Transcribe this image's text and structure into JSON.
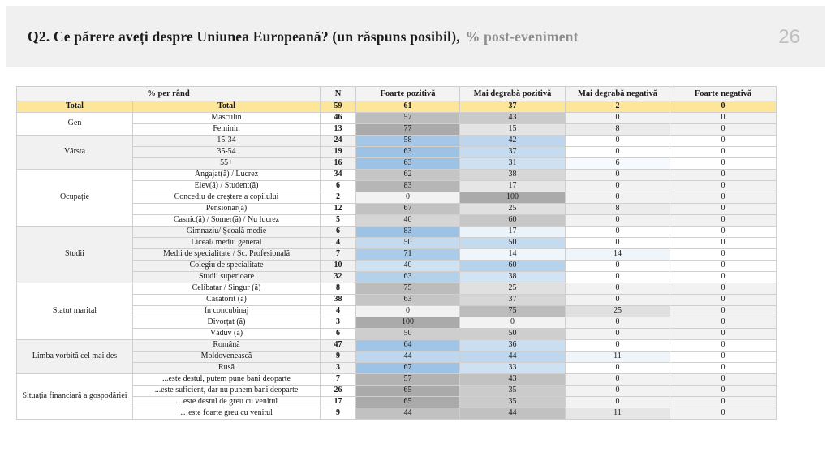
{
  "slide": {
    "title_main": "Q2. Ce părere aveți despre Uniunea Europeană? (un răspuns posibil),",
    "title_accent": "% post-eveniment",
    "page_number": "26"
  },
  "colors": {
    "titlebar_bg": "#F0F0F0",
    "title_text": "#1B1B1B",
    "title_accent": "#8D8D8D",
    "page_number": "#BFBFBF",
    "total_row_bg": "#FDE699",
    "gray_scale_min": "#F2F2F2",
    "gray_scale_max": "#AAAAAA",
    "blue_scale_min": "#FFFFFF",
    "blue_scale_max": "#9CC2E5",
    "group_band_white": "#FFFFFF",
    "group_band_alt": "#F1F1F1",
    "border": "#CFCFCF"
  },
  "chart_data": {
    "type": "table",
    "title": "Q2. Ce părere aveți despre Uniunea Europeană? (un răspuns posibil), % post-eveniment",
    "header": {
      "row_pct_label": "% per rând",
      "n_label": "N",
      "answer_columns": [
        "Foarte pozitivă",
        "Mai degrabă pozitivă",
        "Mai degrabă negativă",
        "Foarte negativă"
      ]
    },
    "total": {
      "group": "Total",
      "label": "Total",
      "n": 59,
      "values": [
        61,
        37,
        2,
        0
      ]
    },
    "groups": [
      {
        "name": "Gen",
        "palette": "gray",
        "rows": [
          {
            "label": "Masculin",
            "n": 46,
            "values": [
              57,
              43,
              0,
              0
            ]
          },
          {
            "label": "Feminin",
            "n": 13,
            "values": [
              77,
              15,
              8,
              0
            ]
          }
        ]
      },
      {
        "name": "Vârsta",
        "palette": "blue",
        "rows": [
          {
            "label": "15-34",
            "n": 24,
            "values": [
              58,
              42,
              0,
              0
            ]
          },
          {
            "label": "35-54",
            "n": 19,
            "values": [
              63,
              37,
              0,
              0
            ]
          },
          {
            "label": "55+",
            "n": 16,
            "values": [
              63,
              31,
              6,
              0
            ]
          }
        ]
      },
      {
        "name": "Ocupație",
        "palette": "gray",
        "rows": [
          {
            "label": "Angajat(ă) / Lucrez",
            "n": 34,
            "values": [
              62,
              38,
              0,
              0
            ]
          },
          {
            "label": "Elev(ă) / Student(ă)",
            "n": 6,
            "values": [
              83,
              17,
              0,
              0
            ]
          },
          {
            "label": "Concediu de creștere a copilului",
            "n": 2,
            "values": [
              0,
              100,
              0,
              0
            ]
          },
          {
            "label": "Pensionar(ă)",
            "n": 12,
            "values": [
              67,
              25,
              8,
              0
            ]
          },
          {
            "label": "Casnic(ă) / Șomer(ă) / Nu lucrez",
            "n": 5,
            "values": [
              40,
              60,
              0,
              0
            ]
          }
        ]
      },
      {
        "name": "Studii",
        "palette": "blue",
        "rows": [
          {
            "label": "Gimnaziu/ Școală medie",
            "n": 6,
            "values": [
              83,
              17,
              0,
              0
            ]
          },
          {
            "label": "Liceal/ mediu general",
            "n": 4,
            "values": [
              50,
              50,
              0,
              0
            ]
          },
          {
            "label": "Medii de specialitate / Șc. Profesională",
            "n": 7,
            "values": [
              71,
              14,
              14,
              0
            ]
          },
          {
            "label": "Colegiu de specialitate",
            "n": 10,
            "values": [
              40,
              60,
              0,
              0
            ]
          },
          {
            "label": "Studii superioare",
            "n": 32,
            "values": [
              63,
              38,
              0,
              0
            ]
          }
        ]
      },
      {
        "name": "Statut marital",
        "palette": "gray",
        "rows": [
          {
            "label": "Celibatar / Singur (ă)",
            "n": 8,
            "values": [
              75,
              25,
              0,
              0
            ]
          },
          {
            "label": "Căsătorit (ă)",
            "n": 38,
            "values": [
              63,
              37,
              0,
              0
            ]
          },
          {
            "label": "În concubinaj",
            "n": 4,
            "values": [
              0,
              75,
              25,
              0
            ]
          },
          {
            "label": "Divorțat (ă)",
            "n": 3,
            "values": [
              100,
              0,
              0,
              0
            ]
          },
          {
            "label": "Văduv (ă)",
            "n": 6,
            "values": [
              50,
              50,
              0,
              0
            ]
          }
        ]
      },
      {
        "name": "Limba vorbită cel mai des",
        "palette": "blue",
        "rows": [
          {
            "label": "Română",
            "n": 47,
            "values": [
              64,
              36,
              0,
              0
            ]
          },
          {
            "label": "Moldovenească",
            "n": 9,
            "values": [
              44,
              44,
              11,
              0
            ]
          },
          {
            "label": "Rusă",
            "n": 3,
            "values": [
              67,
              33,
              0,
              0
            ]
          }
        ]
      },
      {
        "name": "Situația financiară a gospodăriei",
        "palette": "gray",
        "rows": [
          {
            "label": "...este destul, putem pune bani deoparte",
            "n": 7,
            "values": [
              57,
              43,
              0,
              0
            ]
          },
          {
            "label": "...este suficient, dar nu punem bani deoparte",
            "n": 26,
            "values": [
              65,
              35,
              0,
              0
            ]
          },
          {
            "label": "…este destul de greu cu venitul",
            "n": 17,
            "values": [
              65,
              35,
              0,
              0
            ]
          },
          {
            "label": "…este foarte greu cu venitul",
            "n": 9,
            "values": [
              44,
              44,
              11,
              0
            ]
          }
        ]
      }
    ]
  }
}
